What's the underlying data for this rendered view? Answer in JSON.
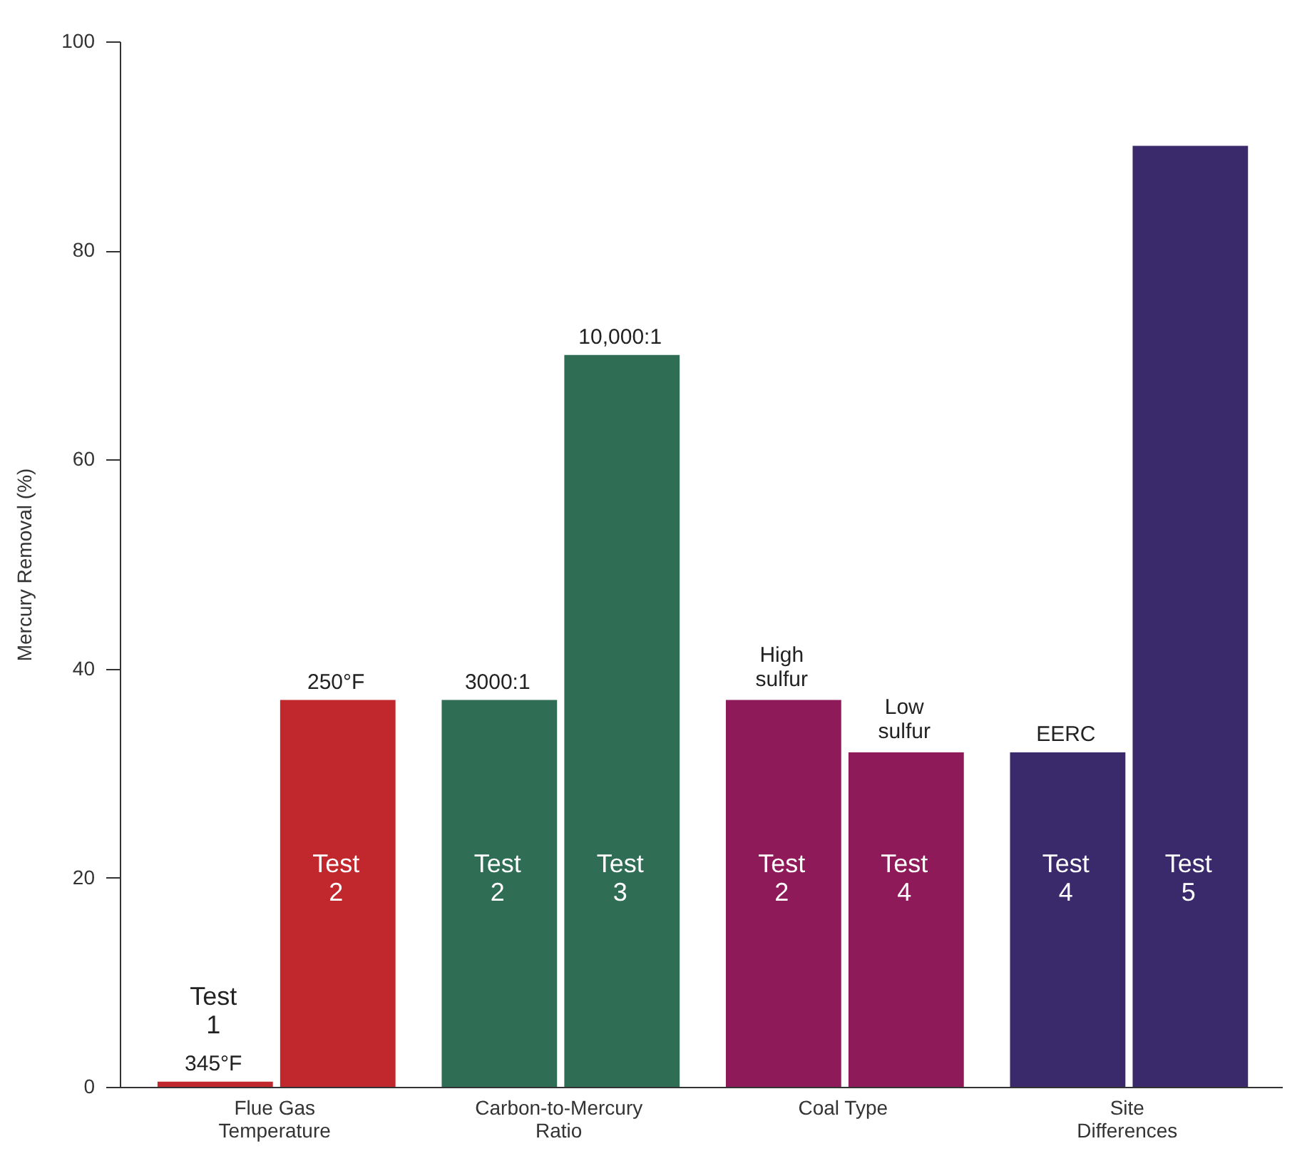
{
  "chart_data": {
    "type": "bar",
    "ylabel": "Mercury Removal (%)",
    "categories": [
      "Flue Gas Temperature",
      "Carbon-to-Mercury Ratio",
      "Coal Type",
      "Site Differences"
    ],
    "series": [
      {
        "colors": [
          "#c0282d",
          "#2f6e55",
          "#8e1a5a",
          "#3a2a6b"
        ],
        "values": [
          0.5,
          37,
          37,
          32
        ],
        "value_labels": [
          "Test 1",
          "Test 2",
          "Test 2",
          "Test 4"
        ]
      },
      {
        "colors": [
          "#c0282d",
          "#2f6e55",
          "#8e1a5a",
          "#3a2a6b"
        ],
        "values": [
          37,
          70,
          32,
          90
        ],
        "value_labels": [
          "Test 2",
          "Test 3",
          "Test 4",
          "Test 5"
        ]
      }
    ],
    "annotations": [
      {
        "text": "345°F",
        "x": "Flue Gas Temperature",
        "y": 0.5
      },
      {
        "text": "250°F",
        "x": "Flue Gas Temperature",
        "y": 37
      },
      {
        "text": "3000:1",
        "x": "Carbon-to-Mercury Ratio",
        "y": 37
      },
      {
        "text": "10,000:1",
        "x": "Carbon-to-Mercury Ratio",
        "y": 70
      },
      {
        "text": "High sulfur",
        "x": "Coal Type",
        "y": 37
      },
      {
        "text": "Low sulfur",
        "x": "Coal Type",
        "y": 32
      },
      {
        "text": "EERC",
        "x": "Site Differences",
        "y": 32
      }
    ],
    "ylim": [
      0,
      100
    ],
    "yticks": [
      0,
      20,
      40,
      60,
      80,
      100
    ],
    "grid": false
  }
}
